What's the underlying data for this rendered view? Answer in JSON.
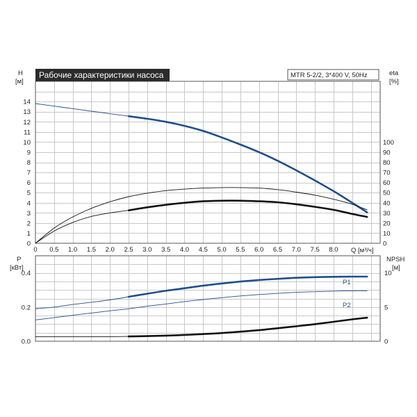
{
  "colors": {
    "blue": "#1f4e8c",
    "black": "#111111",
    "title_bg": "#2b2b2b",
    "title_fg": "#ffffff",
    "grid": "#c8c8c8"
  },
  "chart_data": [
    {
      "type": "line",
      "title": "Рабочие характеристики насоса",
      "subtitle": "MTR 5-2/2, 3*400 V, 50Hz",
      "ylabel_left": [
        "H",
        "[м]"
      ],
      "ylabel_right": [
        "eta",
        "[%]"
      ],
      "xlabel": "Q [м³/ч]",
      "xlim": [
        0,
        9.25
      ],
      "ylim": [
        0,
        16
      ],
      "ylim_right": [
        0,
        160
      ],
      "x_ticks": [
        "0",
        "0.5",
        "1.0",
        "1.5",
        "2.0",
        "2.5",
        "3.0",
        "3.5",
        "4.0",
        "4.5",
        "5.0",
        "5.5",
        "6.0",
        "6.5",
        "7.0",
        "7.5",
        "8.0"
      ],
      "y_ticks": [
        "0",
        "1",
        "2",
        "3",
        "4",
        "5",
        "6",
        "7",
        "8",
        "9",
        "10",
        "11",
        "12",
        "13",
        "14"
      ],
      "y_ticks_right": [
        "0",
        "10",
        "20",
        "30",
        "40",
        "50",
        "60",
        "70",
        "80",
        "90",
        "100"
      ],
      "grid": true,
      "series": [
        {
          "axis": "left",
          "color": "blue",
          "x": [
            0,
            0.5,
            1,
            1.5,
            2,
            2.5
          ],
          "y": [
            13.8,
            13.55,
            13.3,
            13.05,
            12.8,
            12.55
          ],
          "style": "thin"
        },
        {
          "axis": "left",
          "color": "blue",
          "x": [
            2.5,
            3,
            3.5,
            4,
            4.5,
            5,
            5.5,
            6,
            6.5,
            7,
            7.5,
            8,
            8.5,
            8.9
          ],
          "y": [
            12.55,
            12.3,
            12.0,
            11.6,
            11.1,
            10.45,
            9.75,
            9.0,
            8.15,
            7.2,
            6.2,
            5.15,
            4.0,
            3.05
          ],
          "style": "thick"
        },
        {
          "axis": "right",
          "color": "black",
          "x": [
            0,
            0.5,
            1,
            1.5,
            2,
            2.5,
            3,
            3.5,
            4,
            4.5,
            5,
            5.5,
            6,
            6.5,
            7,
            7.5,
            8,
            8.5,
            8.9
          ],
          "y": [
            0,
            15,
            26,
            34.5,
            41,
            46,
            49.5,
            52,
            53.5,
            54.5,
            55,
            55,
            54.5,
            53,
            50.5,
            47.5,
            43.5,
            38.5,
            33
          ],
          "style": "thin"
        },
        {
          "axis": "right",
          "color": "black",
          "x": [
            0,
            0.5,
            1,
            1.5,
            2,
            2.5
          ],
          "y": [
            0,
            12,
            20.5,
            26.5,
            30,
            32.5
          ],
          "style": "thin"
        },
        {
          "axis": "right",
          "color": "black",
          "x": [
            2.5,
            3,
            3.5,
            4,
            4.5,
            5,
            5.5,
            6,
            6.5,
            7,
            7.5,
            8,
            8.5,
            8.9
          ],
          "y": [
            32.5,
            35.5,
            38,
            40,
            41.5,
            42,
            42,
            41.5,
            40.5,
            38.5,
            36,
            33,
            29,
            26
          ],
          "style": "thick"
        }
      ]
    },
    {
      "type": "line",
      "ylabel_left": [
        "P",
        "[кВт]"
      ],
      "ylabel_right": [
        "NPSH",
        "[м]"
      ],
      "xlim": [
        0,
        9.25
      ],
      "ylim": [
        0,
        0.5
      ],
      "ylim_right": [
        0,
        12.5
      ],
      "y_ticks": [
        "0.0",
        "0.2",
        "0.4"
      ],
      "y_ticks_right": [
        "0",
        "5",
        "10"
      ],
      "grid": true,
      "series": [
        {
          "name": "P1",
          "axis": "left",
          "color": "blue",
          "x": [
            0,
            0.5,
            1,
            1.5,
            2,
            2.5
          ],
          "y": [
            0.19,
            0.2,
            0.215,
            0.228,
            0.242,
            0.26
          ],
          "style": "thin"
        },
        {
          "name": "P1",
          "axis": "left",
          "color": "blue",
          "x": [
            2.5,
            3,
            3.5,
            4,
            4.5,
            5,
            5.5,
            6,
            6.5,
            7,
            7.5,
            8,
            8.5,
            8.9
          ],
          "y": [
            0.26,
            0.278,
            0.295,
            0.31,
            0.325,
            0.338,
            0.349,
            0.358,
            0.365,
            0.371,
            0.375,
            0.377,
            0.378,
            0.378
          ],
          "style": "thick"
        },
        {
          "name": "P2",
          "axis": "left",
          "color": "blue",
          "x": [
            0,
            0.5,
            1,
            1.5,
            2,
            2.5,
            3,
            3.5,
            4,
            4.5,
            5,
            5.5,
            6,
            6.5,
            7,
            7.5,
            8,
            8.5,
            8.9
          ],
          "y": [
            0.125,
            0.138,
            0.152,
            0.165,
            0.178,
            0.19,
            0.205,
            0.218,
            0.232,
            0.244,
            0.255,
            0.265,
            0.273,
            0.28,
            0.286,
            0.29,
            0.293,
            0.295,
            0.295
          ],
          "style": "thin"
        },
        {
          "axis": "right",
          "color": "black",
          "x": [
            0,
            0.5,
            1,
            1.5,
            2,
            2.5
          ],
          "y": [
            0.65,
            0.65,
            0.65,
            0.65,
            0.67,
            0.7
          ],
          "style": "thin"
        },
        {
          "axis": "right",
          "color": "black",
          "x": [
            2.5,
            3,
            3.5,
            4,
            4.5,
            5,
            5.5,
            6,
            6.5,
            7,
            7.5,
            8,
            8.5,
            8.9
          ],
          "y": [
            0.7,
            0.75,
            0.82,
            0.92,
            1.05,
            1.2,
            1.4,
            1.62,
            1.9,
            2.2,
            2.5,
            2.85,
            3.2,
            3.45
          ],
          "style": "thick"
        }
      ],
      "labels": [
        "P1",
        "P2"
      ]
    }
  ]
}
